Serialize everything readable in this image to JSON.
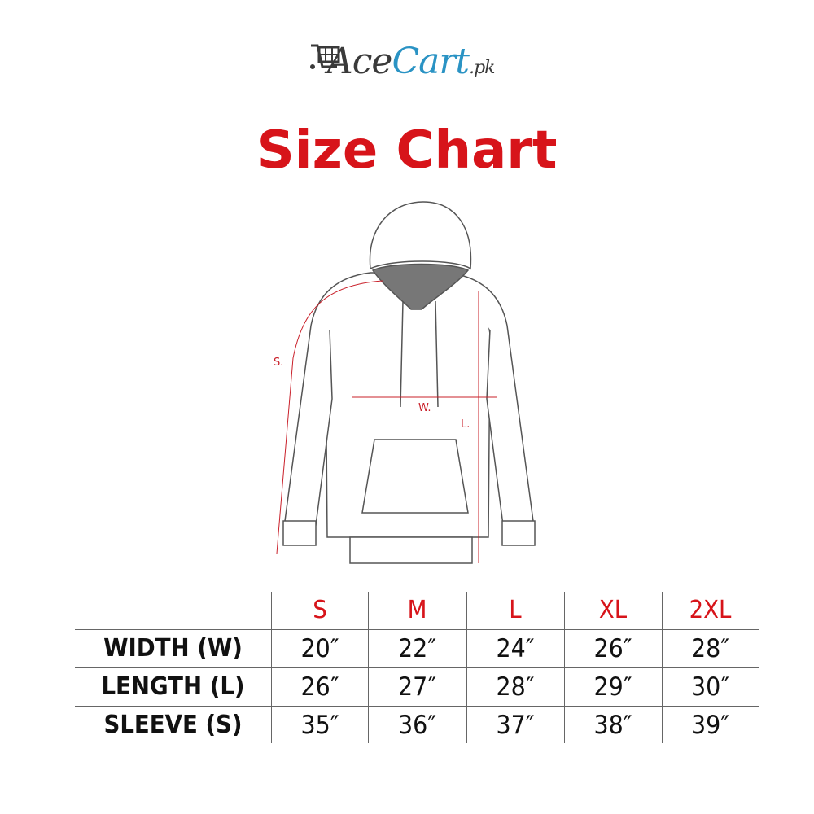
{
  "logo": {
    "text_ace": "Ace",
    "text_cart": "Cart",
    "text_pk": ".pk",
    "brand_blue": "#2a93c4",
    "brand_gray": "#3a3a3a",
    "icon": "shopping-cart-icon"
  },
  "title": "Size Chart",
  "title_color": "#d7141a",
  "diagram": {
    "sleeve_label": "S.",
    "width_label": "W.",
    "length_label": "L.",
    "measure_color": "#c9202a"
  },
  "table": {
    "sizes": [
      "S",
      "M",
      "L",
      "XL",
      "2XL"
    ],
    "rows": [
      {
        "label": "WIDTH (W)",
        "values": [
          "20″",
          "22″",
          "24″",
          "26″",
          "28″"
        ]
      },
      {
        "label": "LENGTH (L)",
        "values": [
          "26″",
          "27″",
          "28″",
          "29″",
          "30″"
        ]
      },
      {
        "label": "SLEEVE (S)",
        "values": [
          "35″",
          "36″",
          "37″",
          "38″",
          "39″"
        ]
      }
    ]
  }
}
